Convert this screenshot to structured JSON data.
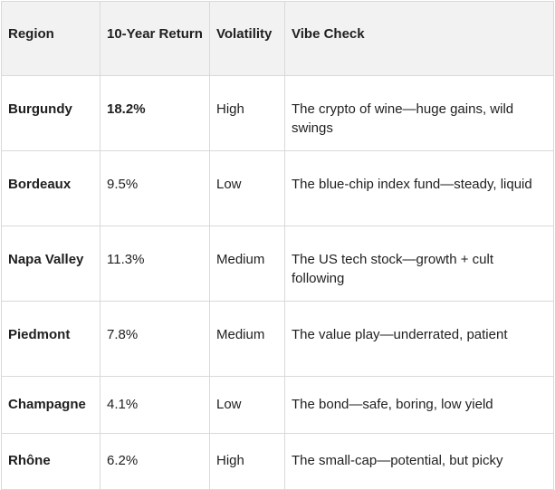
{
  "table": {
    "headers": [
      "Region",
      "10-Year Return",
      "Volatility",
      "Vibe Check"
    ],
    "rows": [
      {
        "region": "Burgundy",
        "return": "18.2%",
        "volatility": "High",
        "vibe": "The crypto of wine—huge gains, wild swings"
      },
      {
        "region": "Bordeaux",
        "return": "9.5%",
        "volatility": "Low",
        "vibe": "The blue-chip index fund—steady, liquid"
      },
      {
        "region": "Napa Valley",
        "return": "11.3%",
        "volatility": "Medium",
        "vibe": "The US tech stock—growth + cult following"
      },
      {
        "region": "Piedmont",
        "return": "7.8%",
        "volatility": "Medium",
        "vibe": "The value play—underrated, patient"
      },
      {
        "region": "Champagne",
        "return": "4.1%",
        "volatility": "Low",
        "vibe": "The bond—safe, boring, low yield"
      },
      {
        "region": "Rhône",
        "return": "6.2%",
        "volatility": "High",
        "vibe": "The small-cap—potential, but picky"
      }
    ]
  }
}
